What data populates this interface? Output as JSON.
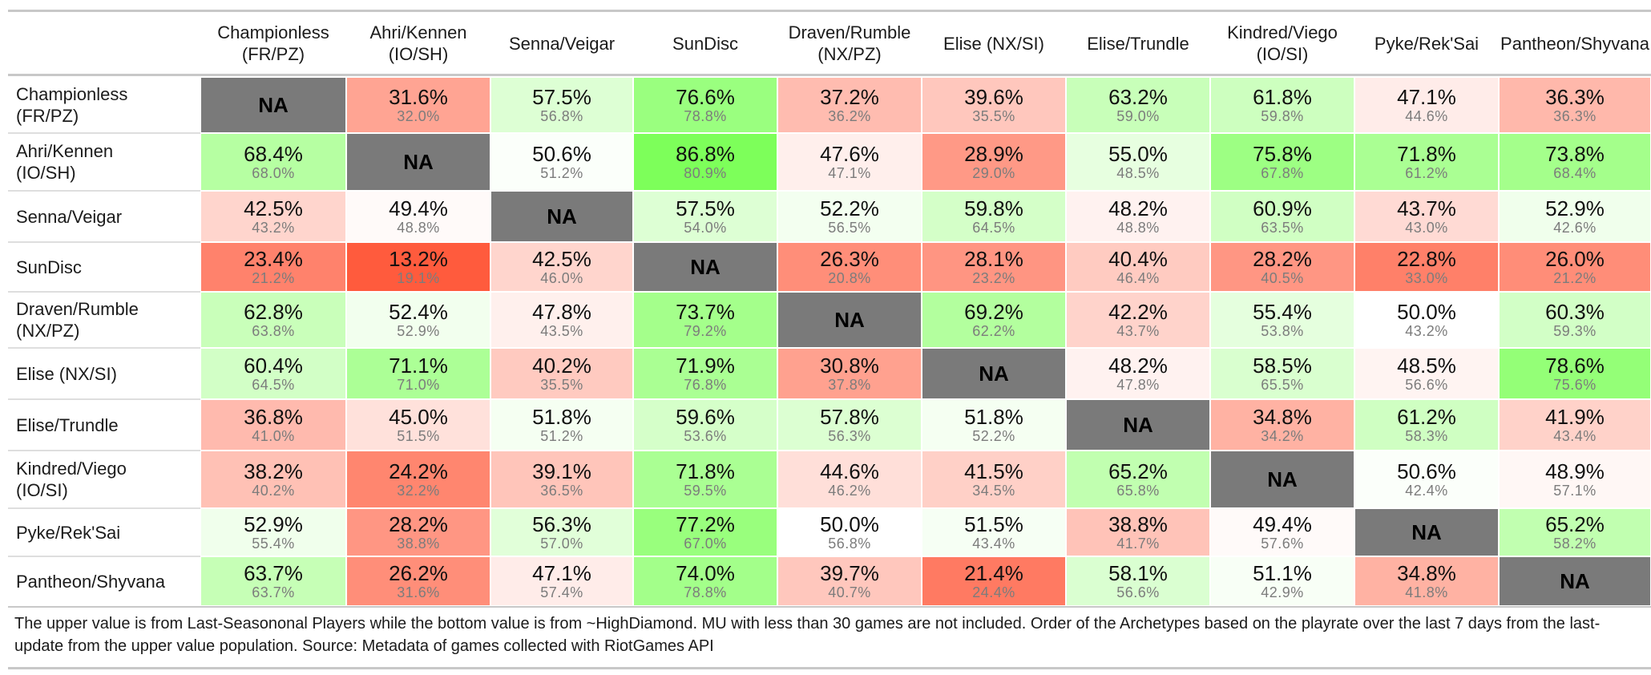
{
  "chart_data": {
    "type": "table",
    "columns": [
      "Championless\n(FR/PZ)",
      "Ahri/Kennen\n(IO/SH)",
      "Senna/Veigar",
      "SunDisc",
      "Draven/Rumble\n(NX/PZ)",
      "Elise (NX/SI)",
      "Elise/Trundle",
      "Kindred/Viego\n(IO/SI)",
      "Pyke/Rek'Sai",
      "Pantheon/Shyvana"
    ],
    "rows": [
      "Championless\n(FR/PZ)",
      "Ahri/Kennen\n(IO/SH)",
      "Senna/Veigar",
      "SunDisc",
      "Draven/Rumble\n(NX/PZ)",
      "Elise (NX/SI)",
      "Elise/Trundle",
      "Kindred/Viego\n(IO/SI)",
      "Pyke/Rek'Sai",
      "Pantheon/Shyvana"
    ],
    "na_label": "NA",
    "upper_values": [
      [
        null,
        31.6,
        57.5,
        76.6,
        37.2,
        39.6,
        63.2,
        61.8,
        47.1,
        36.3
      ],
      [
        68.4,
        null,
        50.6,
        86.8,
        47.6,
        28.9,
        55.0,
        75.8,
        71.8,
        73.8
      ],
      [
        42.5,
        49.4,
        null,
        57.5,
        52.2,
        59.8,
        48.2,
        60.9,
        43.7,
        52.9
      ],
      [
        23.4,
        13.2,
        42.5,
        null,
        26.3,
        28.1,
        40.4,
        28.2,
        22.8,
        26.0
      ],
      [
        62.8,
        52.4,
        47.8,
        73.7,
        null,
        69.2,
        42.2,
        55.4,
        50.0,
        60.3
      ],
      [
        60.4,
        71.1,
        40.2,
        71.9,
        30.8,
        null,
        48.2,
        58.5,
        48.5,
        78.6
      ],
      [
        36.8,
        45.0,
        51.8,
        59.6,
        57.8,
        51.8,
        null,
        34.8,
        61.2,
        41.9
      ],
      [
        38.2,
        24.2,
        39.1,
        71.8,
        44.6,
        41.5,
        65.2,
        null,
        50.6,
        48.9
      ],
      [
        52.9,
        28.2,
        56.3,
        77.2,
        50.0,
        51.5,
        38.8,
        49.4,
        null,
        65.2
      ],
      [
        63.7,
        26.2,
        47.1,
        74.0,
        39.7,
        21.4,
        58.1,
        51.1,
        34.8,
        null
      ]
    ],
    "lower_values": [
      [
        null,
        32.0,
        56.8,
        78.8,
        36.2,
        35.5,
        59.0,
        59.8,
        44.6,
        36.3
      ],
      [
        68.0,
        null,
        51.2,
        80.9,
        47.1,
        29.0,
        48.5,
        67.8,
        61.2,
        68.4
      ],
      [
        43.2,
        48.8,
        null,
        54.0,
        56.5,
        64.5,
        48.8,
        63.5,
        43.0,
        42.6
      ],
      [
        21.2,
        19.1,
        46.0,
        null,
        20.8,
        23.2,
        46.4,
        40.5,
        33.0,
        21.2
      ],
      [
        63.8,
        52.9,
        43.5,
        79.2,
        null,
        62.2,
        43.7,
        53.8,
        43.2,
        59.3
      ],
      [
        64.5,
        71.0,
        35.5,
        76.8,
        37.8,
        null,
        47.8,
        65.5,
        56.6,
        75.6
      ],
      [
        41.0,
        51.5,
        51.2,
        53.6,
        56.3,
        52.2,
        null,
        34.2,
        58.3,
        43.4
      ],
      [
        40.2,
        32.2,
        36.5,
        59.5,
        46.2,
        34.5,
        65.8,
        null,
        42.4,
        57.1
      ],
      [
        55.4,
        38.8,
        57.0,
        67.0,
        56.8,
        43.4,
        41.7,
        57.6,
        null,
        58.2
      ],
      [
        63.7,
        31.6,
        57.4,
        78.8,
        40.7,
        24.4,
        56.6,
        42.9,
        41.8,
        null
      ]
    ],
    "value_suffix": "%",
    "color_scale": {
      "midpoint": 50,
      "low_color": "#ff5a3c",
      "mid_color": "#ffffff",
      "high_color": "#7dff5a",
      "na_color": "#7a7a7a"
    },
    "footnote": "The upper value is from Last-Seasononal Players while the bottom value is from ~HighDiamond. MU with less than 30 games are not included. Order of the Archetypes based on the playrate over the last 7 days from the last-update from the upper value population. Source: Metadata of games collected with RiotGames API"
  }
}
